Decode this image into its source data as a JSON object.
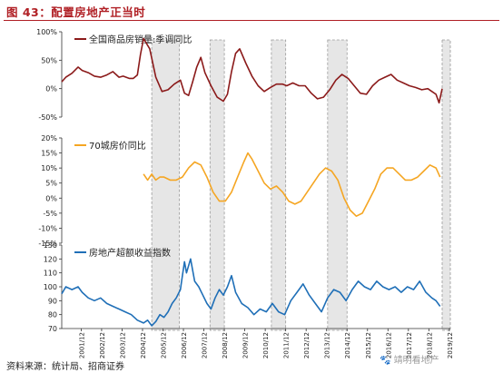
{
  "figure_title": "图 43：配置房地产正当时",
  "source_note": "资料来源：统计局、招商证券",
  "watermark": "🐾 靖明看地产",
  "chart_data": [
    {
      "type": "line",
      "legend": "全国商品房销量:季调同比",
      "legend_placement": "top-left",
      "color": "#8b1a1a",
      "ylim": [
        -50,
        100
      ],
      "yticks": [
        "100%",
        "50%",
        "0%",
        "-50%"
      ],
      "ytick_values": [
        100,
        50,
        0,
        -50
      ],
      "x": [
        2001.0,
        2001.2,
        2001.5,
        2001.8,
        2002.0,
        2002.3,
        2002.6,
        2002.9,
        2003.2,
        2003.5,
        2003.8,
        2004.0,
        2004.3,
        2004.5,
        2004.7,
        2004.85,
        2005.0,
        2005.3,
        2005.6,
        2005.9,
        2006.2,
        2006.5,
        2006.8,
        2007.0,
        2007.2,
        2007.4,
        2007.6,
        2007.8,
        2008.0,
        2008.3,
        2008.6,
        2008.9,
        2009.1,
        2009.3,
        2009.5,
        2009.7,
        2010.0,
        2010.3,
        2010.6,
        2010.9,
        2011.2,
        2011.5,
        2011.8,
        2012.0,
        2012.3,
        2012.6,
        2012.9,
        2013.2,
        2013.5,
        2013.8,
        2014.1,
        2014.4,
        2014.7,
        2015.0,
        2015.3,
        2015.6,
        2015.9,
        2016.2,
        2016.5,
        2016.8,
        2017.1,
        2017.4,
        2017.7,
        2018.0,
        2018.3,
        2018.6,
        2018.9,
        2019.1,
        2019.3,
        2019.45,
        2019.6
      ],
      "values": [
        12,
        20,
        27,
        38,
        32,
        28,
        22,
        20,
        24,
        30,
        20,
        22,
        18,
        18,
        24,
        60,
        88,
        70,
        20,
        -5,
        -2,
        8,
        15,
        -8,
        -12,
        12,
        38,
        55,
        28,
        5,
        -15,
        -22,
        -10,
        30,
        62,
        70,
        45,
        22,
        5,
        -5,
        2,
        8,
        8,
        5,
        10,
        5,
        5,
        -8,
        -18,
        -15,
        -2,
        15,
        25,
        18,
        5,
        -8,
        -10,
        5,
        15,
        20,
        25,
        15,
        10,
        5,
        2,
        -2,
        0,
        -5,
        -10,
        -25,
        0
      ]
    },
    {
      "type": "line",
      "legend": "70城房价同比",
      "legend_placement": "top-left",
      "color": "#f5a623",
      "ylim": [
        -15,
        20
      ],
      "yticks": [
        "20%",
        "15%",
        "10%",
        "5%",
        "0%",
        "-5%",
        "-10%",
        "-15%"
      ],
      "ytick_values": [
        20,
        15,
        10,
        5,
        0,
        -5,
        -10,
        -15
      ],
      "x": [
        2005.0,
        2005.2,
        2005.4,
        2005.6,
        2005.8,
        2006.0,
        2006.3,
        2006.6,
        2006.9,
        2007.2,
        2007.5,
        2007.8,
        2008.1,
        2008.4,
        2008.7,
        2009.0,
        2009.3,
        2009.6,
        2009.9,
        2010.1,
        2010.3,
        2010.6,
        2010.9,
        2011.2,
        2011.5,
        2011.8,
        2012.1,
        2012.4,
        2012.7,
        2013.0,
        2013.3,
        2013.6,
        2013.9,
        2014.2,
        2014.5,
        2014.8,
        2015.1,
        2015.4,
        2015.7,
        2016.0,
        2016.3,
        2016.6,
        2016.9,
        2017.2,
        2017.5,
        2017.8,
        2018.1,
        2018.4,
        2018.7,
        2019.0,
        2019.3,
        2019.5
      ],
      "values": [
        8,
        6,
        8,
        6,
        7,
        7,
        6,
        6,
        7,
        10,
        12,
        11,
        7,
        2,
        -1,
        -1,
        2,
        7,
        12,
        15,
        13,
        9,
        5,
        3,
        4,
        2,
        -1,
        -2,
        -1,
        2,
        5,
        8,
        10,
        9,
        6,
        0,
        -4,
        -6,
        -5,
        -1,
        3,
        8,
        10,
        10,
        8,
        6,
        6,
        7,
        9,
        11,
        10,
        7
      ]
    },
    {
      "type": "line",
      "legend": "房地产超额收益指数",
      "legend_placement": "top-left",
      "color": "#1f6fb7",
      "ylim": [
        70,
        130
      ],
      "yticks": [
        "130",
        "120",
        "110",
        "100",
        "90",
        "80",
        "70"
      ],
      "ytick_values": [
        130,
        120,
        110,
        100,
        90,
        80,
        70
      ],
      "x": [
        2001.0,
        2001.2,
        2001.5,
        2001.8,
        2002.0,
        2002.3,
        2002.6,
        2002.9,
        2003.2,
        2003.5,
        2003.8,
        2004.1,
        2004.4,
        2004.7,
        2005.0,
        2005.2,
        2005.4,
        2005.6,
        2005.8,
        2006.0,
        2006.2,
        2006.4,
        2006.6,
        2006.8,
        2006.9,
        2007.0,
        2007.1,
        2007.3,
        2007.5,
        2007.7,
        2007.9,
        2008.1,
        2008.3,
        2008.5,
        2008.7,
        2008.9,
        2009.1,
        2009.3,
        2009.5,
        2009.8,
        2010.1,
        2010.4,
        2010.7,
        2011.0,
        2011.3,
        2011.6,
        2011.9,
        2012.2,
        2012.5,
        2012.8,
        2013.1,
        2013.4,
        2013.7,
        2014.0,
        2014.3,
        2014.6,
        2014.9,
        2015.2,
        2015.5,
        2015.8,
        2016.1,
        2016.4,
        2016.7,
        2017.0,
        2017.3,
        2017.6,
        2017.9,
        2018.2,
        2018.5,
        2018.8,
        2019.1,
        2019.3,
        2019.5
      ],
      "values": [
        95,
        100,
        98,
        100,
        96,
        92,
        90,
        92,
        88,
        86,
        84,
        82,
        80,
        76,
        74,
        76,
        72,
        75,
        80,
        78,
        82,
        88,
        92,
        98,
        108,
        118,
        110,
        120,
        104,
        100,
        94,
        88,
        84,
        92,
        98,
        94,
        100,
        108,
        96,
        88,
        85,
        80,
        84,
        82,
        88,
        82,
        80,
        90,
        96,
        102,
        94,
        88,
        82,
        92,
        98,
        96,
        90,
        98,
        104,
        100,
        98,
        104,
        100,
        98,
        100,
        96,
        100,
        98,
        104,
        96,
        92,
        90,
        86
      ]
    }
  ],
  "x_ticks": [
    "2001/12",
    "2002/12",
    "2003/12",
    "2004/12",
    "2005/12",
    "2006/12",
    "2007/12",
    "2008/12",
    "2009/12",
    "2010/12",
    "2011/12",
    "2012/12",
    "2013/12",
    "2014/12",
    "2015/12",
    "2016/12",
    "2017/12",
    "2018/12",
    "2019/12"
  ],
  "x_tick_values": [
    2001.95,
    2002.95,
    2003.95,
    2004.95,
    2005.95,
    2006.95,
    2007.95,
    2008.95,
    2009.95,
    2010.95,
    2011.95,
    2012.95,
    2013.95,
    2014.95,
    2015.95,
    2016.95,
    2017.95,
    2018.95,
    2019.95
  ],
  "xlim": [
    2001.0,
    2020.0
  ],
  "shaded_periods": [
    [
      2005.4,
      2006.75
    ],
    [
      2008.25,
      2008.95
    ],
    [
      2011.25,
      2011.95
    ],
    [
      2014.0,
      2014.95
    ],
    [
      2019.6,
      2020.0
    ]
  ]
}
